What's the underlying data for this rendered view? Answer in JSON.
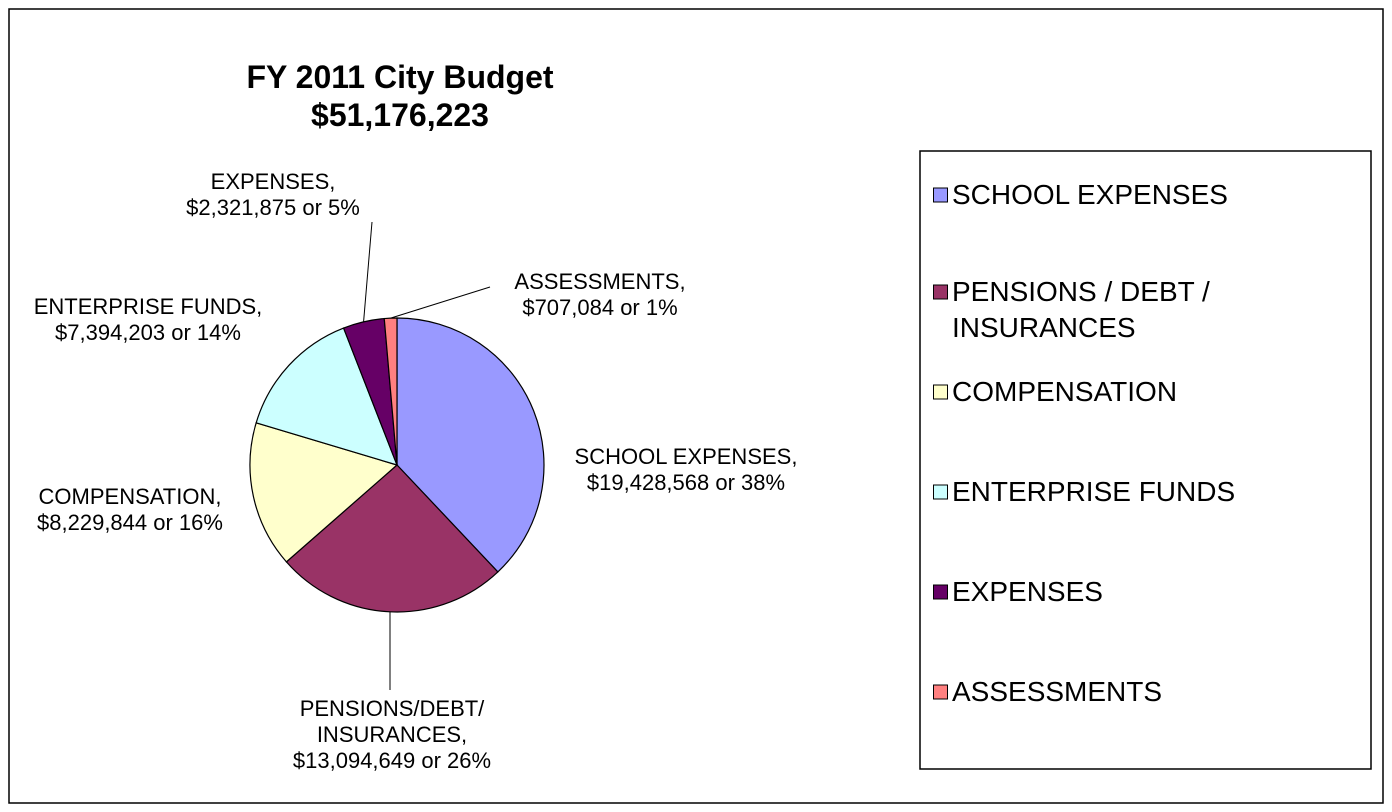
{
  "chart_data": {
    "type": "pie",
    "title": "FY 2011 City Budget",
    "subtitle": "$51,176,223",
    "categories": [
      "SCHOOL EXPENSES",
      "PENSIONS / DEBT / INSURANCES",
      "COMPENSATION",
      "ENTERPRISE FUNDS",
      "EXPENSES",
      "ASSESSMENTS"
    ],
    "series": [
      {
        "values": [
          19428568,
          13094649,
          8229844,
          7394203,
          2321875,
          707084
        ],
        "value_labels": [
          "SCHOOL EXPENSES, $19,428,568 or 38%",
          "PENSIONS/DEBT/ INSURANCES, $13,094,649 or 26%",
          "COMPENSATION, $8,229,844 or 16%",
          "ENTERPRISE FUNDS,  $7,394,203 or 14%",
          "EXPENSES, $2,321,875 or 5%",
          "ASSESSMENTS, $707,084 or 1%"
        ],
        "colors": [
          "#9999ff",
          "#993366",
          "#ffffcc",
          "#ccffff",
          "#660066",
          "#ff8080"
        ]
      }
    ],
    "legend": "right"
  }
}
